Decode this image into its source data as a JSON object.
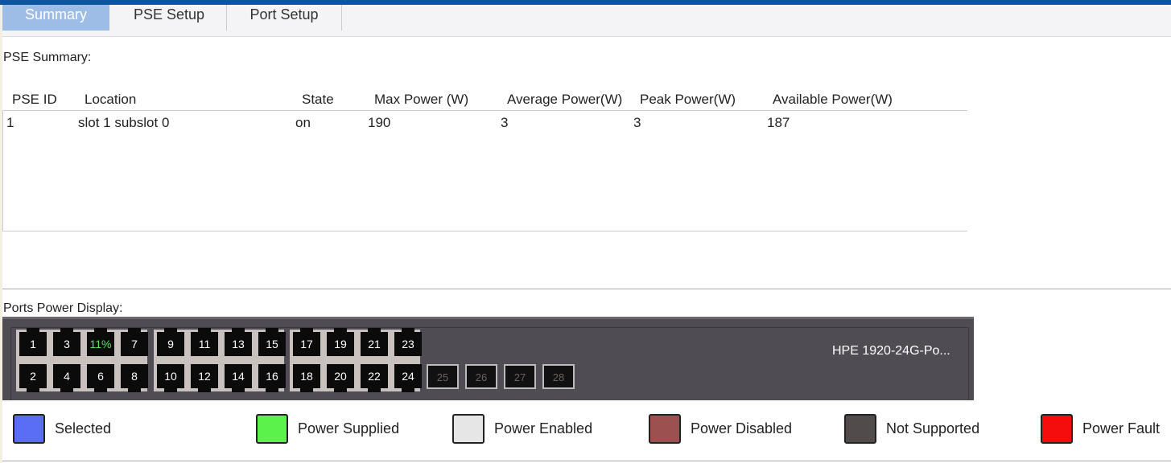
{
  "tabs": [
    {
      "label": "Summary",
      "active": true
    },
    {
      "label": "PSE Setup"
    },
    {
      "label": "Port Setup"
    }
  ],
  "pse_summary": {
    "title": "PSE Summary:",
    "columns": [
      "PSE ID",
      "Location",
      "State",
      "Max Power (W)",
      "Average Power(W)",
      "Peak Power(W)",
      "Available Power(W)"
    ],
    "rows": [
      [
        "1",
        "slot 1 subslot 0",
        "on",
        "190",
        "3",
        "3",
        "187"
      ]
    ]
  },
  "ports_display": {
    "title": "Ports Power Display:",
    "model": "HPE 1920-24G-Po...",
    "ports": [
      {
        "top": "1",
        "bottom": "2"
      },
      {
        "top": "3",
        "bottom": "4"
      },
      {
        "top": "11%",
        "bottom": "6",
        "top_powered": true
      },
      {
        "top": "7",
        "bottom": "8"
      },
      {
        "top": "9",
        "bottom": "10"
      },
      {
        "top": "11",
        "bottom": "12"
      },
      {
        "top": "13",
        "bottom": "14"
      },
      {
        "top": "15",
        "bottom": "16"
      },
      {
        "top": "17",
        "bottom": "18"
      },
      {
        "top": "19",
        "bottom": "20"
      },
      {
        "top": "21",
        "bottom": "22"
      },
      {
        "top": "23",
        "bottom": "24"
      }
    ],
    "sfp_ports": [
      "25",
      "26",
      "27",
      "28"
    ]
  },
  "legend": [
    {
      "label": "Selected",
      "color": "#5a6ef5"
    },
    {
      "label": "Power Supplied",
      "color": "#5cf24c"
    },
    {
      "label": "Power Enabled",
      "color": "#e6e6e6"
    },
    {
      "label": "Power Disabled",
      "color": "#9c5050"
    },
    {
      "label": "Not Supported",
      "color": "#514b4c"
    },
    {
      "label": "Power Fault",
      "color": "#f50c0c"
    }
  ]
}
